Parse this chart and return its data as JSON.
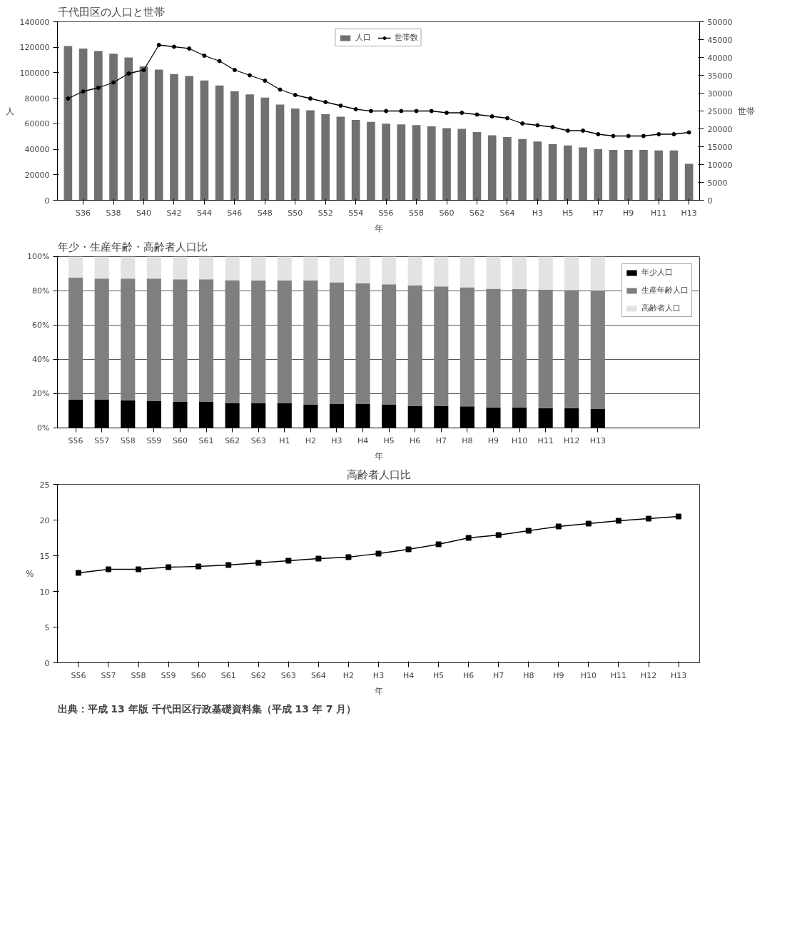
{
  "chart_data": [
    {
      "type": "bar",
      "title": "千代田区の人口と世帯",
      "xlabel": "年",
      "ylabel": "人",
      "y2label": "世帯",
      "categories": [
        null,
        "S36",
        null,
        "S38",
        null,
        "S40",
        null,
        "S42",
        null,
        "S44",
        null,
        "S46",
        null,
        "S48",
        null,
        "S50",
        null,
        "S52",
        null,
        "S54",
        null,
        "S56",
        null,
        "S58",
        null,
        "S60",
        null,
        "S62",
        null,
        "S64",
        null,
        "H3",
        null,
        "H5",
        null,
        "H7",
        null,
        "H9",
        null,
        "H11",
        null,
        "H13"
      ],
      "series": [
        {
          "name": "人口",
          "type": "bar",
          "color": "#707070",
          "values": [
            121000,
            119000,
            117000,
            115000,
            112000,
            105000,
            102500,
            99000,
            97500,
            94000,
            90000,
            85500,
            83000,
            80500,
            75000,
            72000,
            70500,
            67500,
            65500,
            63000,
            61500,
            60000,
            59500,
            59000,
            58000,
            56500,
            56000,
            53500,
            51000,
            49500,
            48000,
            46000,
            44000,
            43000,
            41500,
            40000,
            39500,
            39500,
            39500,
            39000,
            39000,
            28500
          ]
        },
        {
          "name": "世帯数",
          "type": "line",
          "axis": "y2",
          "color": "#000000",
          "marker": "circle",
          "values": [
            28500,
            30500,
            31500,
            33000,
            35500,
            36500,
            43500,
            43000,
            42500,
            40500,
            39000,
            36500,
            35000,
            33500,
            31000,
            29500,
            28500,
            27500,
            26500,
            25500,
            25000,
            25000,
            25000,
            25000,
            25000,
            24500,
            24500,
            24000,
            23500,
            23000,
            21500,
            21000,
            20500,
            19500,
            19500,
            18500,
            18000,
            18000,
            18000,
            18500,
            18500,
            19000
          ]
        }
      ],
      "ylim": [
        0,
        140000
      ],
      "yticks": [
        0,
        20000,
        40000,
        60000,
        80000,
        100000,
        120000,
        140000
      ],
      "y2lim": [
        0,
        50000
      ],
      "y2ticks": [
        0,
        5000,
        10000,
        15000,
        20000,
        25000,
        30000,
        35000,
        40000,
        45000,
        50000
      ],
      "grid": false,
      "legend": "top"
    },
    {
      "type": "bar",
      "stacked": true,
      "title": "年少・生産年齢・高齢者人口比",
      "xlabel": "年",
      "categories": [
        "S56",
        "S57",
        "S58",
        "S59",
        "S60",
        "S61",
        "S62",
        "S63",
        "H1",
        "H2",
        "H3",
        "H4",
        "H5",
        "H6",
        "H7",
        "H8",
        "H9",
        "H10",
        "H11",
        "H12",
        "H13"
      ],
      "series": [
        {
          "name": "年少人口",
          "color": "#000000",
          "values": [
            16.5,
            16.5,
            16.1,
            15.6,
            15.2,
            15.2,
            14.6,
            14.4,
            14.4,
            13.8,
            14.0,
            14.0,
            13.7,
            12.7,
            12.7,
            12.6,
            12.0,
            12.0,
            11.6,
            11.6,
            11.3
          ]
        },
        {
          "name": "生産年齢人口",
          "color": "#7f7f7f",
          "values": [
            71.3,
            70.7,
            71.1,
            71.6,
            71.6,
            71.6,
            71.7,
            71.6,
            71.6,
            72.2,
            71.0,
            70.5,
            70.2,
            70.5,
            69.9,
            69.5,
            69.3,
            69.1,
            69.1,
            68.9,
            68.9
          ]
        },
        {
          "name": "高齢者人口",
          "color": "#e3e3e3",
          "values": [
            12.2,
            12.8,
            12.8,
            12.8,
            13.2,
            13.2,
            13.7,
            14.0,
            14.0,
            14.0,
            15.0,
            15.5,
            16.1,
            16.8,
            17.4,
            17.9,
            18.7,
            18.9,
            19.3,
            19.5,
            19.8
          ]
        }
      ],
      "ylim": [
        0,
        100
      ],
      "yticks": [
        {
          "value": 0,
          "label": "0%"
        },
        {
          "value": 20,
          "label": "20%"
        },
        {
          "value": 40,
          "label": "40%"
        },
        {
          "value": 60,
          "label": "60%"
        },
        {
          "value": 80,
          "label": "80%"
        },
        {
          "value": 100,
          "label": "100%"
        }
      ],
      "grid": "y",
      "legend": "top right"
    },
    {
      "type": "line",
      "title": "高齢者人口比",
      "xlabel": "年",
      "ylabel": "%",
      "marker": "square",
      "categories": [
        "S56",
        "S57",
        "S58",
        "S59",
        "S60",
        "S61",
        "S62",
        "S63",
        "S64",
        "H2",
        "H3",
        "H4",
        "H5",
        "H6",
        "H7",
        "H8",
        "H9",
        "H10",
        "H11",
        "H12",
        "H13"
      ],
      "series": [
        {
          "color": "#000000",
          "values": [
            12.6,
            13.1,
            13.1,
            13.4,
            13.5,
            13.7,
            14.0,
            14.3,
            14.6,
            14.8,
            15.3,
            15.9,
            16.6,
            17.5,
            17.9,
            18.5,
            19.1,
            19.5,
            19.9,
            20.2,
            20.5
          ]
        }
      ],
      "ylim": [
        0,
        25
      ],
      "yticks": [
        0,
        5,
        10,
        15,
        20,
        25
      ],
      "grid": false,
      "annotations": [
        "出典：平成 13 年版 千代田区行政基礎資料集（平成 13 年 7 月）"
      ]
    }
  ]
}
